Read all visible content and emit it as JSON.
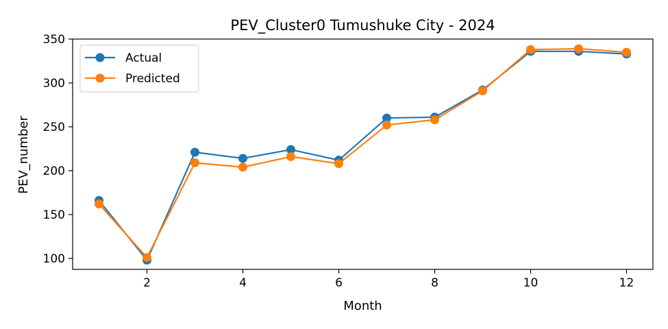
{
  "chart_data": {
    "type": "line",
    "title": "PEV_Cluster0 Tumushuke City - 2024",
    "xlabel": "Month",
    "ylabel": "PEV_number",
    "xlim": [
      0.45,
      12.55
    ],
    "ylim": [
      87.5,
      350
    ],
    "xticks": [
      2,
      4,
      6,
      8,
      10,
      12
    ],
    "yticks": [
      100,
      150,
      200,
      250,
      300,
      350
    ],
    "x": [
      1,
      2,
      3,
      4,
      5,
      6,
      7,
      8,
      9,
      10,
      11,
      12
    ],
    "legend_position": "top-left",
    "grid": false,
    "series": [
      {
        "name": "Actual",
        "color": "#1f77b4",
        "values": [
          166,
          98,
          221,
          214,
          224,
          212,
          260,
          261,
          292,
          336,
          336,
          333
        ]
      },
      {
        "name": "Predicted",
        "color": "#ff7f0e",
        "values": [
          162,
          101,
          209,
          204,
          216,
          208,
          252,
          258,
          291,
          338,
          339,
          335
        ]
      }
    ]
  }
}
